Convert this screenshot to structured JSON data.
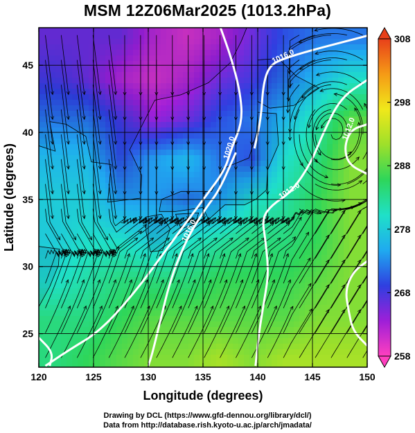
{
  "header": {
    "title": "MSM 12Z06Mar2025 (1013.2hPa)"
  },
  "footer": {
    "credit_drawing": "Drawing by DCL (https://www.gfd-dennou.org/library/dcl/)",
    "credit_data": "Data from http://database.rish.kyoto-u.ac.jp/arch/jmadata/"
  },
  "chart_data": {
    "type": "heatmap",
    "title": "MSM 12Z06Mar2025 (1013.2hPa)",
    "xlabel": "Longitude (degrees)",
    "ylabel": "Latitude  (degrees)",
    "xlim": [
      120,
      150
    ],
    "ylim": [
      22.5,
      47.8
    ],
    "x_ticks": [
      120,
      125,
      130,
      135,
      140,
      145,
      150
    ],
    "y_ticks": [
      25,
      30,
      35,
      40,
      45
    ],
    "grid": true,
    "colorbar": {
      "min": 258,
      "max": 308,
      "ticks": [
        258,
        268,
        278,
        288,
        298,
        308
      ],
      "placement": "right",
      "colors": [
        "#ff3fbf",
        "#9e1fd8",
        "#2f3fe0",
        "#1faaf0",
        "#1fe0c8",
        "#2ed65a",
        "#9ee02a",
        "#f0e81a",
        "#f59a16",
        "#e8401a"
      ]
    },
    "field_values": [
      {
        "lat": 47,
        "values": [
          266,
          266,
          266,
          262,
          260,
          262,
          266,
          270,
          272,
          272
        ]
      },
      {
        "lat": 44,
        "values": [
          268,
          266,
          262,
          260,
          262,
          266,
          268,
          272,
          276,
          280
        ]
      },
      {
        "lat": 41,
        "values": [
          272,
          272,
          268,
          264,
          266,
          270,
          272,
          276,
          282,
          288
        ]
      },
      {
        "lat": 38,
        "values": [
          276,
          276,
          270,
          274,
          276,
          272,
          270,
          280,
          284,
          290
        ]
      },
      {
        "lat": 35,
        "values": [
          278,
          278,
          274,
          274,
          272,
          274,
          280,
          282,
          286,
          290
        ]
      },
      {
        "lat": 32,
        "values": [
          278,
          280,
          280,
          278,
          280,
          282,
          284,
          284,
          286,
          290
        ]
      },
      {
        "lat": 29,
        "values": [
          280,
          282,
          284,
          284,
          284,
          286,
          286,
          286,
          288,
          290
        ]
      },
      {
        "lat": 26,
        "values": [
          284,
          284,
          286,
          288,
          288,
          288,
          288,
          288,
          290,
          290
        ]
      },
      {
        "lat": 23,
        "values": [
          284,
          286,
          288,
          290,
          290,
          292,
          290,
          292,
          292,
          292
        ]
      }
    ],
    "contours": [
      {
        "label": "1020.0",
        "points": [
          [
            136.6,
            47.8
          ],
          [
            137.6,
            45.5
          ],
          [
            138.4,
            43.0
          ],
          [
            138.6,
            40.8
          ],
          [
            137.6,
            38.8
          ],
          [
            137.0,
            37.2
          ],
          [
            135.3,
            35.3
          ],
          [
            133.3,
            33.1
          ],
          [
            131.6,
            31.2
          ],
          [
            128.7,
            28.0
          ],
          [
            125.6,
            25.2
          ],
          [
            122.8,
            23.8
          ],
          [
            120.6,
            22.6
          ]
        ]
      },
      {
        "label": "1016.0",
        "points": [
          [
            138.0,
            38.5
          ],
          [
            136.5,
            35.7
          ],
          [
            135.3,
            34.4
          ],
          [
            133.9,
            32.6
          ],
          [
            132.8,
            30.7
          ],
          [
            131.9,
            28.6
          ],
          [
            131.2,
            26.3
          ],
          [
            130.4,
            23.6
          ],
          [
            130.0,
            22.6
          ]
        ]
      },
      {
        "label": "1016.0",
        "points": [
          [
            150.0,
            47.2
          ],
          [
            144.8,
            46.1
          ],
          [
            142.4,
            45.5
          ],
          [
            141.1,
            45.0
          ],
          [
            140.5,
            43.6
          ],
          [
            140.3,
            41.0
          ],
          [
            139.7,
            38.8
          ]
        ]
      },
      {
        "label": "1012.0",
        "points": [
          [
            150.0,
            43.9
          ],
          [
            147.6,
            42.6
          ],
          [
            146.0,
            40.0
          ],
          [
            144.8,
            37.6
          ],
          [
            143.0,
            35.5
          ],
          [
            141.3,
            34.6
          ],
          [
            140.4,
            33.6
          ],
          [
            140.7,
            32.0
          ],
          [
            141.0,
            29.5
          ],
          [
            140.6,
            27.5
          ],
          [
            140.1,
            25.0
          ],
          [
            139.8,
            22.6
          ]
        ]
      },
      {
        "label": "1012.0",
        "points": [
          [
            150.0,
            40.6
          ],
          [
            148.5,
            40.2
          ],
          [
            147.9,
            38.9
          ],
          [
            148.3,
            37.6
          ],
          [
            150.0,
            36.9
          ]
        ]
      },
      {
        "label": "",
        "points": [
          [
            150.0,
            30.4
          ],
          [
            148.7,
            29.6
          ],
          [
            148.0,
            28.2
          ],
          [
            148.3,
            26.7
          ],
          [
            148.7,
            25.2
          ],
          [
            150.0,
            24.1
          ]
        ]
      },
      {
        "label": "",
        "points": [
          [
            120.0,
            24.7
          ],
          [
            121.3,
            23.6
          ],
          [
            121.0,
            22.6
          ]
        ]
      }
    ]
  }
}
